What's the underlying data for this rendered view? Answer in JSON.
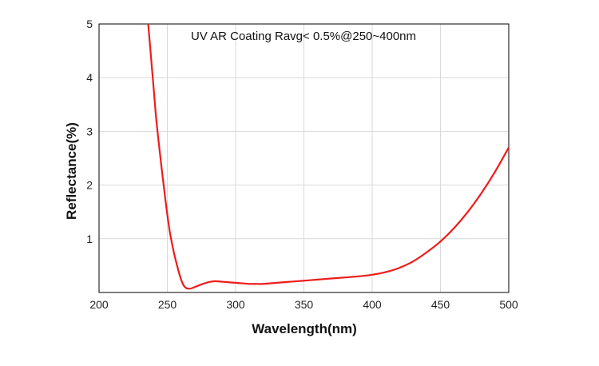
{
  "chart_data": {
    "type": "line",
    "title": "UV AR Coating Ravg< 0.5%@250~400nm",
    "xlabel": "Wavelength(nm)",
    "ylabel": "Reflectance(%)",
    "xlim": [
      200,
      500
    ],
    "ylim": [
      0,
      5
    ],
    "xticks": [
      200,
      250,
      300,
      350,
      400,
      450,
      500
    ],
    "yticks": [
      1,
      2,
      3,
      4,
      5
    ],
    "grid": true,
    "colors": {
      "line": "#ee1c1c",
      "grid": "#d9d9d9",
      "axis": "#000000"
    },
    "series": [
      {
        "x": [
          236,
          238,
          240,
          242,
          245,
          248,
          250,
          252,
          255,
          258,
          260,
          262,
          264,
          266,
          268,
          270,
          275,
          280,
          285,
          290,
          295,
          300,
          305,
          310,
          315,
          320,
          330,
          340,
          350,
          360,
          370,
          380,
          390,
          400,
          410,
          420,
          430,
          440,
          450,
          460,
          470,
          480,
          490,
          500
        ],
        "y": [
          5.0,
          4.4,
          3.8,
          3.2,
          2.5,
          1.85,
          1.45,
          1.1,
          0.72,
          0.42,
          0.25,
          0.13,
          0.08,
          0.07,
          0.08,
          0.1,
          0.15,
          0.19,
          0.21,
          0.2,
          0.19,
          0.18,
          0.17,
          0.16,
          0.16,
          0.16,
          0.18,
          0.2,
          0.22,
          0.24,
          0.26,
          0.28,
          0.3,
          0.33,
          0.38,
          0.46,
          0.58,
          0.75,
          0.95,
          1.2,
          1.5,
          1.85,
          2.25,
          2.7
        ]
      }
    ]
  }
}
